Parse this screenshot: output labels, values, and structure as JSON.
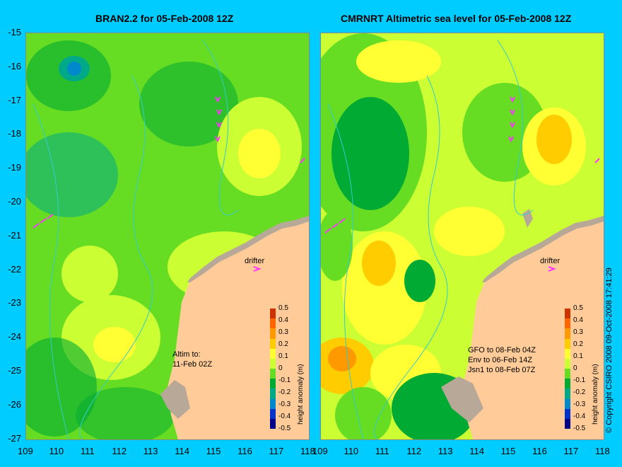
{
  "left": {
    "title": "BRAN2.2 for 05-Feb-2008 12Z",
    "note_lines": [
      "Altim to:",
      "11-Feb 02Z"
    ],
    "drifter": "drifter"
  },
  "right": {
    "title": "CMRNRT Altimetric sea level  for 05-Feb-2008 12Z",
    "note_lines": [
      "GFO to 08-Feb 04Z",
      "Env to 06-Feb 14Z",
      "Jsn1 to 08-Feb 07Z"
    ],
    "drifter": "drifter"
  },
  "axes": {
    "x_ticks": [
      "109",
      "110",
      "111",
      "112",
      "113",
      "114",
      "115",
      "116",
      "117",
      "118"
    ],
    "y_ticks": [
      "-15",
      "-16",
      "-17",
      "-18",
      "-19",
      "-20",
      "-21",
      "-22",
      "-23",
      "-24",
      "-25",
      "-26",
      "-27"
    ]
  },
  "colorbar": {
    "title": "height anomaly (m)",
    "labels": [
      "0.5",
      "0.4",
      "0.3",
      "0.2",
      "0.1",
      "0",
      "-0.1",
      "-0.2",
      "-0.3",
      "-0.4",
      "-0.5"
    ],
    "colors": [
      "#cc3300",
      "#ff6600",
      "#ff9900",
      "#ffcc00",
      "#ffff33",
      "#ccff33",
      "#66dd22",
      "#00aa33",
      "#00aa88",
      "#0088cc",
      "#0033cc",
      "#000088"
    ]
  },
  "copyright": "© Copyright CSIRO 2008     09-Oct-2008 17:41:29",
  "colors": {
    "background": "#00ccff",
    "land": "#ffcc99",
    "coast_shade": "#b8a898",
    "drifter_arrow": "#ff33ff",
    "contour": "#33cccc"
  }
}
